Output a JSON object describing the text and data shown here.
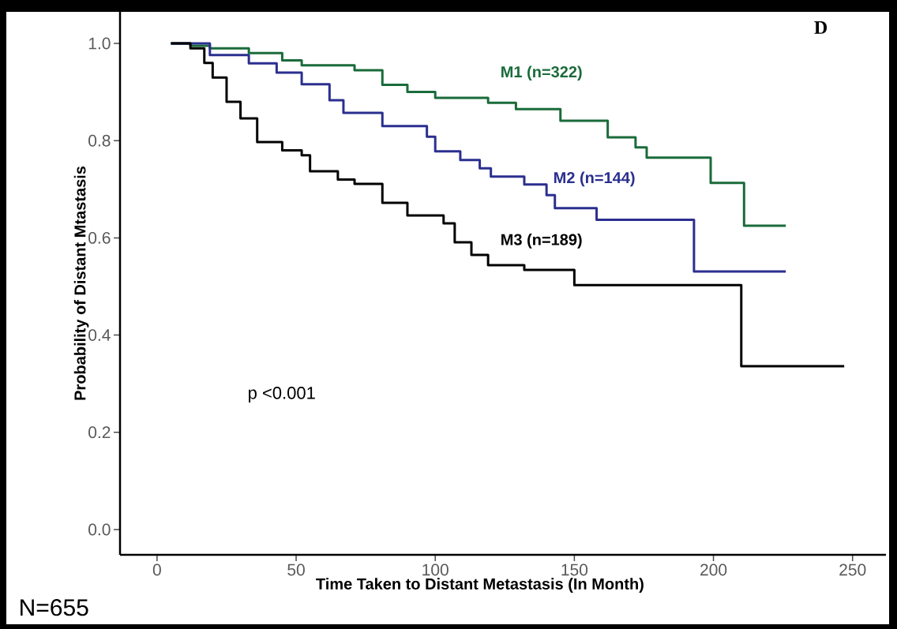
{
  "chart_data": {
    "type": "step",
    "xlabel": "Time Taken to Distant Metastasis (In Month)",
    "ylabel": "Probability of Distant Mtastasis",
    "annotations": [
      "D",
      "p <0.001",
      "N=655"
    ],
    "xlim": [
      -13.3,
      262
    ],
    "ylim": [
      -0.052,
      1.065
    ],
    "xticks": [
      0,
      50,
      100,
      150,
      200,
      250
    ],
    "yticks": [
      {
        "value": 0,
        "label": "0.0"
      },
      {
        "value": 0.2,
        "label": "0.2"
      },
      {
        "value": 0.4,
        "label": "0.4"
      },
      {
        "value": 0.6,
        "label": "0.6"
      },
      {
        "value": 0.8,
        "label": "0.8"
      },
      {
        "value": 1,
        "label": "1.0"
      }
    ],
    "grid": false,
    "legend": false,
    "series": [
      {
        "name": "M1 (n=322)",
        "color": "#1a6b3a",
        "x": [
          5,
          12,
          19,
          33,
          45,
          52,
          71,
          81,
          90,
          100,
          119,
          129,
          145,
          162,
          172,
          176,
          199,
          211,
          226
        ],
        "values": [
          1.0,
          0.995,
          0.99,
          0.98,
          0.965,
          0.955,
          0.945,
          0.915,
          0.9,
          0.888,
          0.878,
          0.865,
          0.841,
          0.807,
          0.786,
          0.765,
          0.713,
          0.625,
          0.625
        ]
      },
      {
        "name": "M2 (n=144)",
        "color": "#2b2f8f",
        "x": [
          5,
          19,
          33,
          43,
          52,
          62,
          67,
          81,
          97,
          100,
          109,
          116,
          120,
          132,
          140,
          143,
          158,
          193,
          226
        ],
        "values": [
          1.0,
          0.976,
          0.959,
          0.94,
          0.916,
          0.883,
          0.857,
          0.83,
          0.808,
          0.778,
          0.76,
          0.743,
          0.726,
          0.71,
          0.688,
          0.661,
          0.637,
          0.531,
          0.531
        ]
      },
      {
        "name": "M3 (n=189)",
        "color": "#000000",
        "x": [
          5,
          12,
          17,
          20,
          25,
          30,
          36,
          45,
          52,
          55,
          65,
          71,
          81,
          90,
          103,
          107,
          113,
          119,
          132,
          150,
          210,
          247
        ],
        "values": [
          1.0,
          0.99,
          0.96,
          0.93,
          0.88,
          0.846,
          0.797,
          0.78,
          0.77,
          0.737,
          0.72,
          0.711,
          0.672,
          0.646,
          0.63,
          0.591,
          0.565,
          0.544,
          0.534,
          0.503,
          0.336,
          0.336
        ]
      }
    ]
  }
}
